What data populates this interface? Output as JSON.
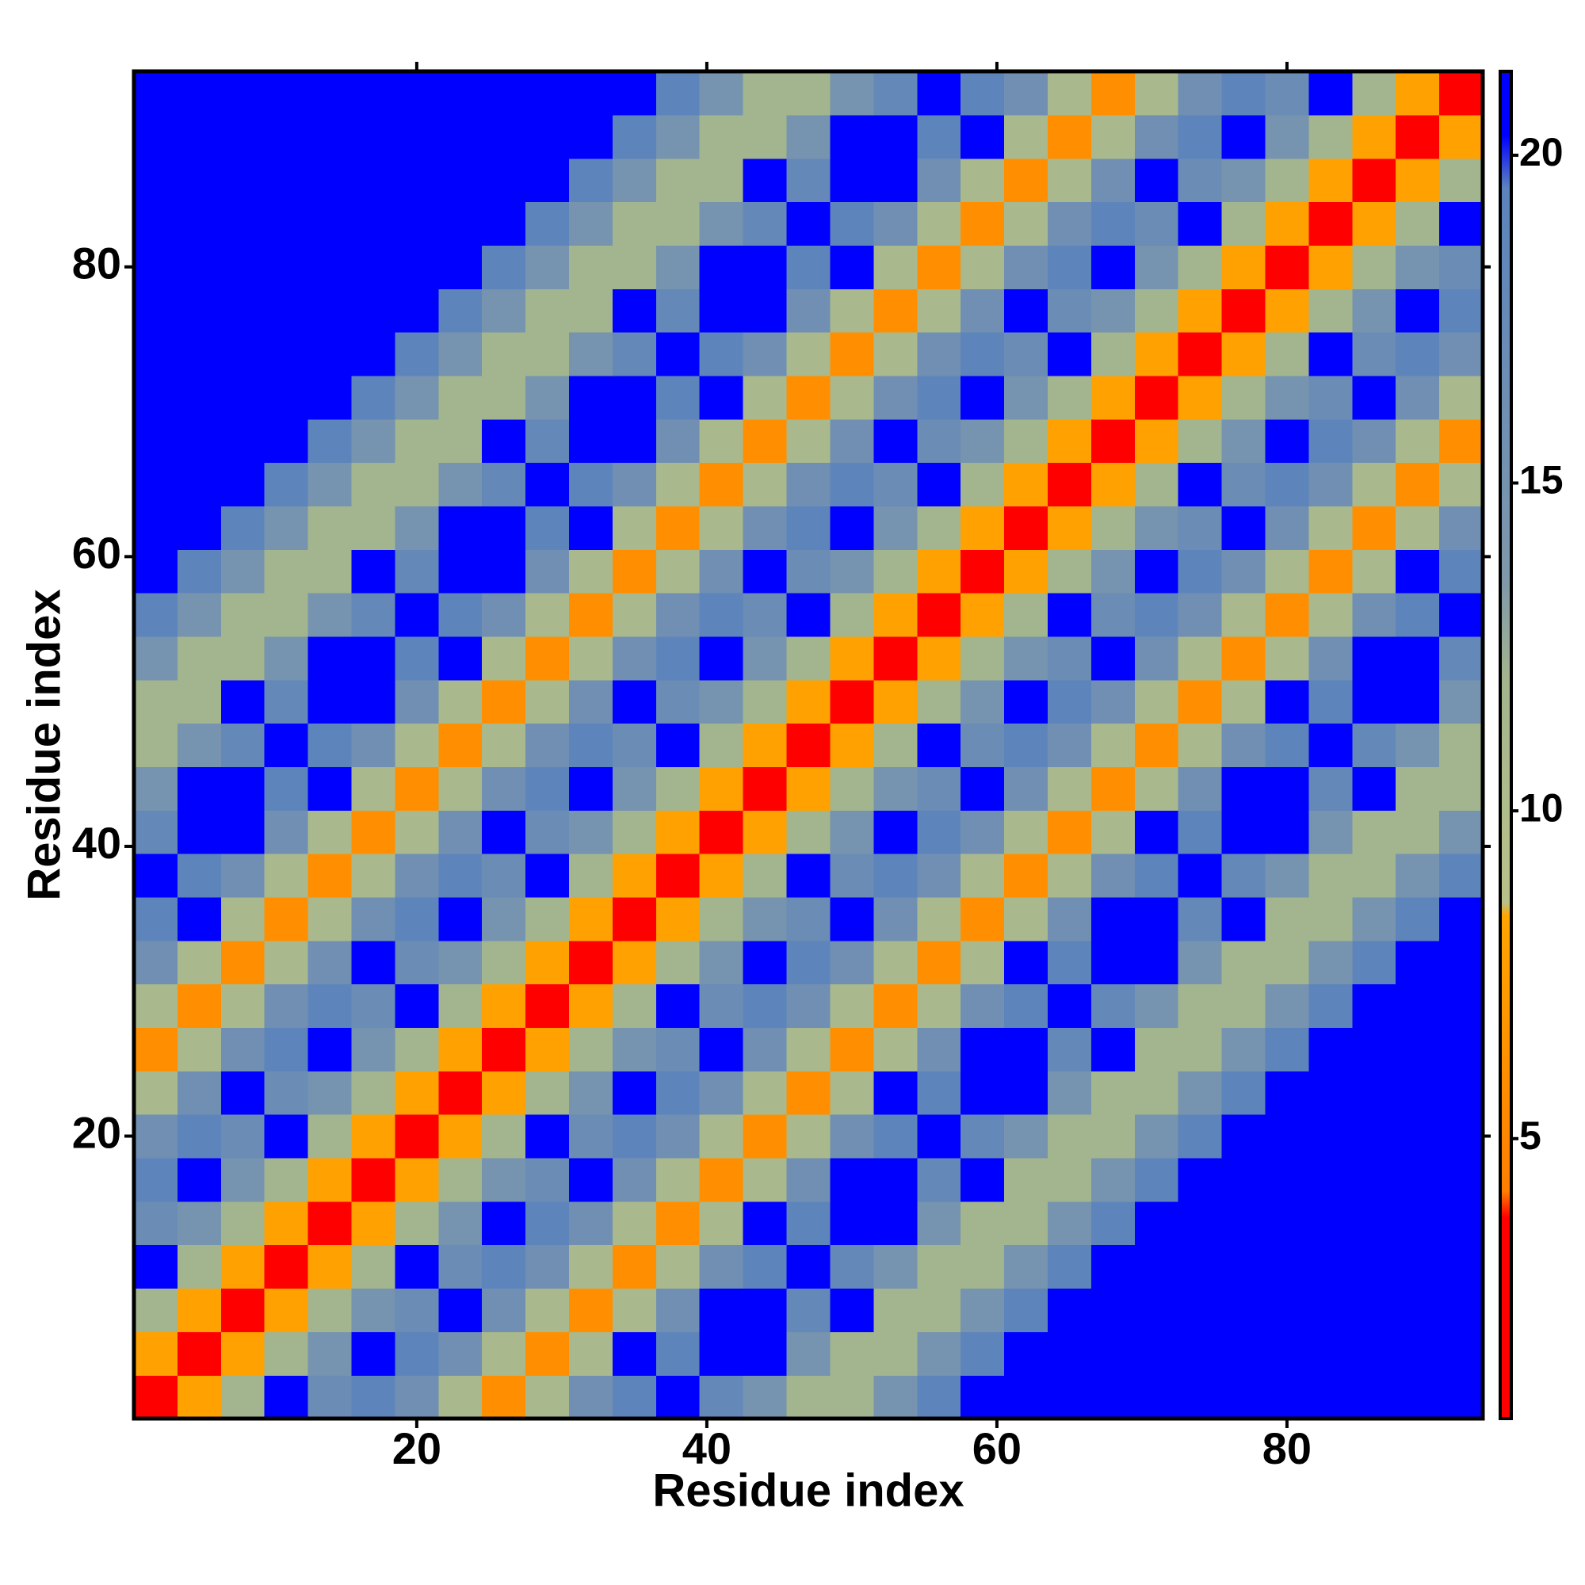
{
  "chart_data": {
    "type": "heatmap",
    "xlabel": "Residue index",
    "ylabel": "Residue index",
    "x": [
      2,
      5,
      8,
      11,
      14,
      17,
      20,
      23,
      26,
      29,
      32,
      35,
      38,
      41,
      44,
      47,
      50,
      53,
      56,
      59,
      62,
      65,
      68,
      71,
      74,
      77,
      80,
      83,
      86,
      89,
      92
    ],
    "y": [
      2,
      5,
      8,
      11,
      14,
      17,
      20,
      23,
      26,
      29,
      32,
      35,
      38,
      41,
      44,
      47,
      50,
      53,
      56,
      59,
      62,
      65,
      68,
      71,
      74,
      77,
      80,
      83,
      86,
      89,
      92
    ],
    "xlim": [
      0.5,
      93.5
    ],
    "ylim": [
      0.5,
      93.5
    ],
    "xticks": [
      20,
      40,
      60,
      80
    ],
    "yticks": [
      20,
      40,
      60,
      80
    ],
    "colorbar": {
      "lim": [
        0.73,
        21.28
      ],
      "ticks": [
        5,
        10,
        15,
        20
      ],
      "colorscale": [
        [
          0.73,
          "#ff0000"
        ],
        [
          3.8,
          "#ff0000"
        ],
        [
          4.2,
          "#ff7f00"
        ],
        [
          8.4,
          "#ffa500"
        ],
        [
          8.6,
          "#b9c18a"
        ],
        [
          12,
          "#a3b58e"
        ],
        [
          13.5,
          "#7f98aa"
        ],
        [
          19.5,
          "#5b83bd"
        ],
        [
          20.3,
          "#0000ff"
        ],
        [
          21.28,
          "#0000ff"
        ]
      ]
    },
    "values": [
      [
        3,
        8,
        12,
        21,
        17,
        19,
        16,
        11,
        6,
        11,
        16,
        19,
        21,
        18,
        15,
        12,
        12,
        15,
        19,
        21,
        21,
        21,
        21,
        21,
        21,
        21,
        21,
        21,
        21,
        21,
        21
      ],
      [
        8,
        3,
        8,
        12,
        15,
        21,
        19,
        16,
        11,
        6,
        11,
        21,
        19,
        21,
        21,
        15,
        12,
        12,
        15,
        19,
        21,
        21,
        21,
        21,
        21,
        21,
        21,
        21,
        21,
        21,
        21
      ],
      [
        12,
        8,
        3,
        8,
        12,
        15,
        17,
        21,
        16,
        11,
        6,
        11,
        16,
        21,
        21,
        18,
        21,
        12,
        12,
        15,
        19,
        21,
        21,
        21,
        21,
        21,
        21,
        21,
        21,
        21,
        21
      ],
      [
        21,
        12,
        8,
        3,
        8,
        12,
        21,
        17,
        19,
        16,
        11,
        6,
        11,
        16,
        19,
        21,
        18,
        15,
        12,
        12,
        15,
        19,
        21,
        21,
        21,
        21,
        21,
        21,
        21,
        21,
        21
      ],
      [
        17,
        15,
        12,
        8,
        3,
        8,
        12,
        15,
        21,
        19,
        16,
        11,
        6,
        11,
        21,
        19,
        21,
        21,
        15,
        12,
        12,
        15,
        19,
        21,
        21,
        21,
        21,
        21,
        21,
        21,
        21
      ],
      [
        19,
        21,
        15,
        12,
        8,
        3,
        8,
        12,
        15,
        17,
        21,
        16,
        11,
        6,
        11,
        16,
        21,
        21,
        18,
        21,
        12,
        12,
        15,
        19,
        21,
        21,
        21,
        21,
        21,
        21,
        21
      ],
      [
        16,
        19,
        17,
        21,
        12,
        8,
        3,
        8,
        12,
        21,
        17,
        19,
        16,
        11,
        6,
        11,
        16,
        19,
        21,
        18,
        15,
        12,
        12,
        15,
        19,
        21,
        21,
        21,
        21,
        21,
        21
      ],
      [
        11,
        16,
        21,
        17,
        15,
        12,
        8,
        3,
        8,
        12,
        15,
        21,
        19,
        16,
        11,
        6,
        11,
        21,
        19,
        21,
        21,
        15,
        12,
        12,
        15,
        19,
        21,
        21,
        21,
        21,
        21
      ],
      [
        6,
        11,
        16,
        19,
        21,
        15,
        12,
        8,
        3,
        8,
        12,
        15,
        17,
        21,
        16,
        11,
        6,
        11,
        16,
        21,
        21,
        18,
        21,
        12,
        12,
        15,
        19,
        21,
        21,
        21,
        21
      ],
      [
        11,
        6,
        11,
        16,
        19,
        17,
        21,
        12,
        8,
        3,
        8,
        12,
        21,
        17,
        19,
        16,
        11,
        6,
        11,
        16,
        19,
        21,
        18,
        15,
        12,
        12,
        15,
        19,
        21,
        21,
        21
      ],
      [
        16,
        11,
        6,
        11,
        16,
        21,
        17,
        15,
        12,
        8,
        3,
        8,
        12,
        15,
        21,
        19,
        16,
        11,
        6,
        11,
        21,
        19,
        21,
        21,
        15,
        12,
        12,
        15,
        19,
        21,
        21
      ],
      [
        19,
        21,
        11,
        6,
        11,
        16,
        19,
        21,
        15,
        12,
        8,
        3,
        8,
        12,
        15,
        17,
        21,
        16,
        11,
        6,
        11,
        16,
        21,
        21,
        18,
        21,
        12,
        12,
        15,
        19,
        21
      ],
      [
        21,
        19,
        16,
        11,
        6,
        11,
        16,
        19,
        17,
        21,
        12,
        8,
        3,
        8,
        12,
        21,
        17,
        19,
        16,
        11,
        6,
        11,
        16,
        19,
        21,
        18,
        15,
        12,
        12,
        15,
        19
      ],
      [
        18,
        21,
        21,
        16,
        11,
        6,
        11,
        16,
        21,
        17,
        15,
        12,
        8,
        3,
        8,
        12,
        15,
        21,
        19,
        16,
        11,
        6,
        11,
        21,
        19,
        21,
        21,
        15,
        12,
        12,
        15
      ],
      [
        15,
        21,
        21,
        19,
        21,
        11,
        6,
        11,
        16,
        19,
        21,
        15,
        12,
        8,
        3,
        8,
        12,
        15,
        17,
        21,
        16,
        11,
        6,
        11,
        16,
        21,
        21,
        18,
        21,
        12,
        12
      ],
      [
        12,
        15,
        18,
        21,
        19,
        16,
        11,
        6,
        11,
        16,
        19,
        17,
        21,
        12,
        8,
        3,
        8,
        12,
        21,
        17,
        19,
        16,
        11,
        6,
        11,
        16,
        19,
        21,
        18,
        15,
        12
      ],
      [
        12,
        12,
        21,
        18,
        21,
        21,
        16,
        11,
        6,
        11,
        16,
        21,
        17,
        15,
        12,
        8,
        3,
        8,
        12,
        15,
        21,
        19,
        16,
        11,
        6,
        11,
        21,
        19,
        21,
        21,
        15
      ],
      [
        15,
        12,
        12,
        15,
        21,
        21,
        19,
        21,
        11,
        6,
        11,
        16,
        19,
        21,
        15,
        12,
        8,
        3,
        8,
        12,
        15,
        17,
        21,
        16,
        11,
        6,
        11,
        16,
        21,
        21,
        18
      ],
      [
        19,
        15,
        12,
        12,
        15,
        18,
        21,
        19,
        16,
        11,
        6,
        11,
        16,
        19,
        17,
        21,
        12,
        8,
        3,
        8,
        12,
        21,
        17,
        19,
        16,
        11,
        6,
        11,
        16,
        19,
        21
      ],
      [
        21,
        19,
        15,
        12,
        12,
        21,
        18,
        21,
        21,
        16,
        11,
        6,
        11,
        16,
        21,
        17,
        15,
        12,
        8,
        3,
        8,
        12,
        15,
        21,
        19,
        16,
        11,
        6,
        11,
        21,
        19
      ],
      [
        21,
        21,
        19,
        15,
        12,
        12,
        15,
        21,
        21,
        19,
        21,
        11,
        6,
        11,
        16,
        19,
        21,
        15,
        12,
        8,
        3,
        8,
        12,
        15,
        17,
        21,
        16,
        11,
        6,
        11,
        16
      ],
      [
        21,
        21,
        21,
        19,
        15,
        12,
        12,
        15,
        18,
        21,
        19,
        16,
        11,
        6,
        11,
        16,
        19,
        17,
        21,
        12,
        8,
        3,
        8,
        12,
        21,
        17,
        19,
        16,
        11,
        6,
        11
      ],
      [
        21,
        21,
        21,
        21,
        19,
        15,
        12,
        12,
        21,
        18,
        21,
        21,
        16,
        11,
        6,
        11,
        16,
        21,
        17,
        15,
        12,
        8,
        3,
        8,
        12,
        15,
        21,
        19,
        16,
        11,
        6
      ],
      [
        21,
        21,
        21,
        21,
        21,
        19,
        15,
        12,
        12,
        15,
        21,
        21,
        19,
        21,
        11,
        6,
        11,
        16,
        19,
        21,
        15,
        12,
        8,
        3,
        8,
        12,
        15,
        17,
        21,
        16,
        11
      ],
      [
        21,
        21,
        21,
        21,
        21,
        21,
        19,
        15,
        12,
        12,
        15,
        18,
        21,
        19,
        16,
        11,
        6,
        11,
        16,
        19,
        17,
        21,
        12,
        8,
        3,
        8,
        12,
        21,
        17,
        19,
        16
      ],
      [
        21,
        21,
        21,
        21,
        21,
        21,
        21,
        19,
        15,
        12,
        12,
        21,
        18,
        21,
        21,
        16,
        11,
        6,
        11,
        16,
        21,
        17,
        15,
        12,
        8,
        3,
        8,
        12,
        15,
        21,
        19
      ],
      [
        21,
        21,
        21,
        21,
        21,
        21,
        21,
        21,
        19,
        15,
        12,
        12,
        15,
        21,
        21,
        19,
        21,
        11,
        6,
        11,
        16,
        19,
        21,
        15,
        12,
        8,
        3,
        8,
        12,
        15,
        17
      ],
      [
        21,
        21,
        21,
        21,
        21,
        21,
        21,
        21,
        21,
        19,
        15,
        12,
        12,
        15,
        18,
        21,
        19,
        16,
        11,
        6,
        11,
        16,
        19,
        17,
        21,
        12,
        8,
        3,
        8,
        12,
        21
      ],
      [
        21,
        21,
        21,
        21,
        21,
        21,
        21,
        21,
        21,
        21,
        19,
        15,
        12,
        12,
        21,
        18,
        21,
        21,
        16,
        11,
        6,
        11,
        16,
        21,
        17,
        15,
        12,
        8,
        3,
        8,
        12
      ],
      [
        21,
        21,
        21,
        21,
        21,
        21,
        21,
        21,
        21,
        21,
        21,
        19,
        15,
        12,
        12,
        15,
        21,
        21,
        19,
        21,
        11,
        6,
        11,
        16,
        19,
        21,
        15,
        12,
        8,
        3,
        8
      ],
      [
        21,
        21,
        21,
        21,
        21,
        21,
        21,
        21,
        21,
        21,
        21,
        21,
        19,
        15,
        12,
        12,
        15,
        18,
        21,
        19,
        16,
        11,
        6,
        11,
        16,
        19,
        17,
        21,
        12,
        8,
        3
      ]
    ]
  }
}
